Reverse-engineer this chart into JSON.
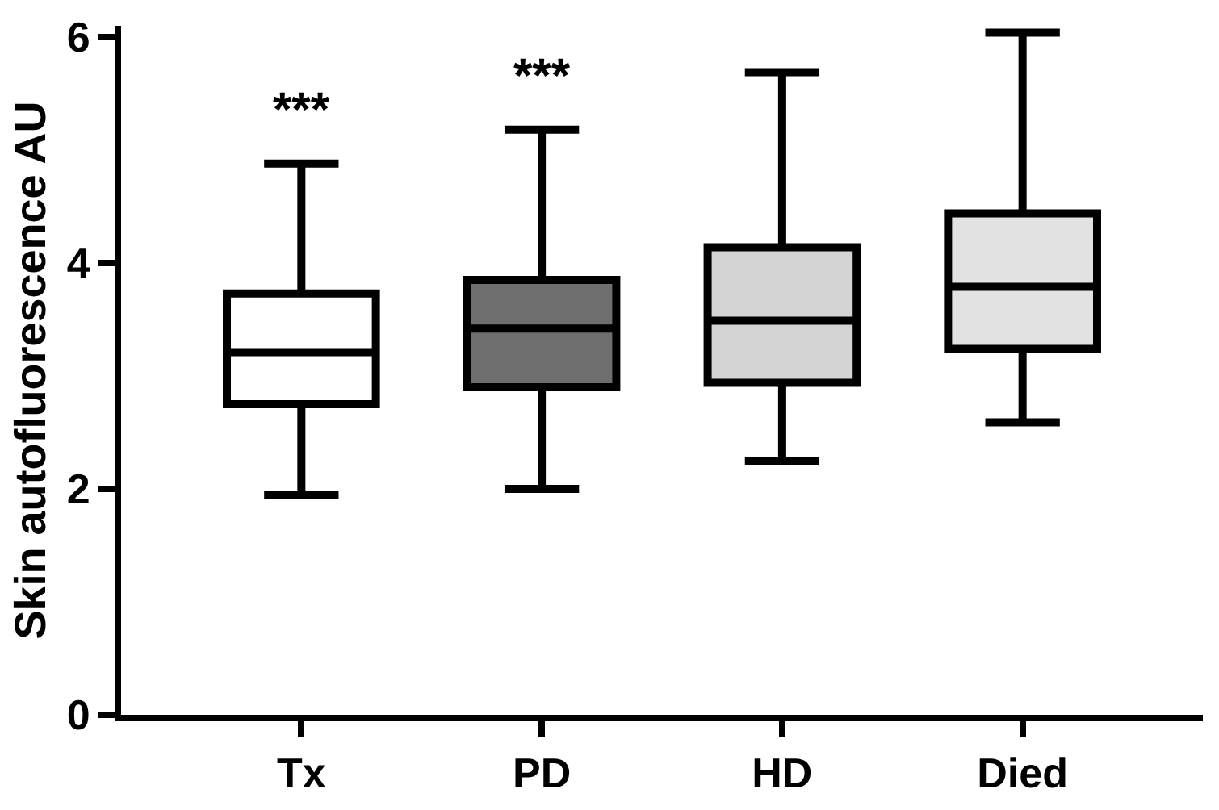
{
  "chart_data": {
    "type": "box",
    "ylabel": "Skin autofluorescence AU",
    "categories": [
      "Tx",
      "PD",
      "HD",
      "Died"
    ],
    "boxes": [
      {
        "low": 1.95,
        "q1": 2.75,
        "median": 3.21,
        "q3": 3.73,
        "high": 4.88
      },
      {
        "low": 2.0,
        "q1": 2.9,
        "median": 3.42,
        "q3": 3.85,
        "high": 5.18
      },
      {
        "low": 2.25,
        "q1": 2.94,
        "median": 3.49,
        "q3": 4.14,
        "high": 5.69
      },
      {
        "low": 2.59,
        "q1": 3.24,
        "median": 3.79,
        "q3": 4.44,
        "high": 6.04
      }
    ],
    "colors": [
      "#ffffff",
      "#6e6e6e",
      "#d4d4d4",
      "#e2e2e2"
    ],
    "ylim": [
      0,
      6.1
    ],
    "yticks": [
      0,
      2,
      4,
      6
    ],
    "annotations": [
      "***",
      "***"
    ]
  }
}
